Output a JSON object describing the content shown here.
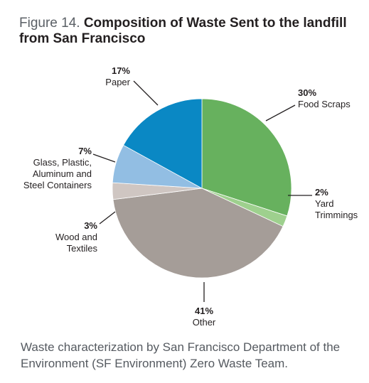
{
  "figure": {
    "prefix": "Figure 14.",
    "title": "Composition of Waste Sent to the landfill from San Francisco"
  },
  "caption": "Waste characterization by San Francisco Department of the Environment (SF Environment) Zero Waste Team.",
  "chart_data": {
    "type": "pie",
    "title": "Composition of Waste Sent to the landfill from San Francisco",
    "slices": [
      {
        "label": [
          "Food Scraps"
        ],
        "percent_label": "30%",
        "value": 30,
        "color": "#67b15e"
      },
      {
        "label": [
          "Yard",
          "Trimmings"
        ],
        "percent_label": "2%",
        "value": 2,
        "color": "#9ed08e"
      },
      {
        "label": [
          "Other"
        ],
        "percent_label": "41%",
        "value": 41,
        "color": "#a59d98"
      },
      {
        "label": [
          "Wood and",
          "Textiles"
        ],
        "percent_label": "3%",
        "value": 3,
        "color": "#cfc6c2"
      },
      {
        "label": [
          "Glass, Plastic,",
          "Aluminum and",
          "Steel Containers"
        ],
        "percent_label": "7%",
        "value": 7,
        "color": "#92bee3"
      },
      {
        "label": [
          "Paper"
        ],
        "percent_label": "17%",
        "value": 17,
        "color": "#0a88c4"
      }
    ]
  }
}
